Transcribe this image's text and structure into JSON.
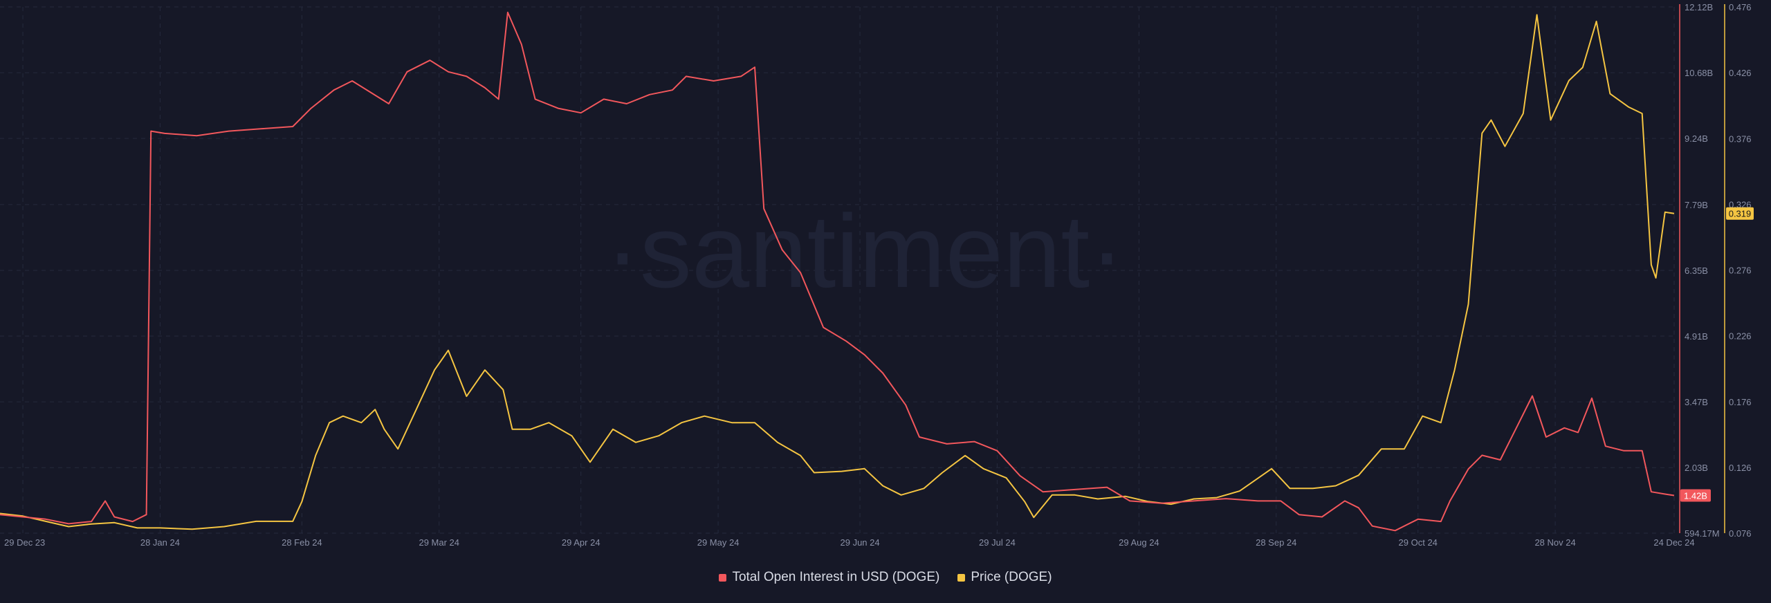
{
  "watermark": "·santiment·",
  "colors": {
    "background": "#161827",
    "grid": "#252a3d",
    "open_interest": "#f2575c",
    "price": "#f5c542",
    "axis_text": "#8a90a6"
  },
  "chart_data": {
    "type": "line",
    "title": "",
    "legend_position": "bottom-center",
    "grid": true,
    "x_range": [
      "2023-12-24",
      "2024-12-24"
    ],
    "x_ticks": [
      {
        "date": "2023-12-29",
        "label": "29 Dec 23"
      },
      {
        "date": "2024-01-28",
        "label": "28 Jan 24"
      },
      {
        "date": "2024-02-28",
        "label": "28 Feb 24"
      },
      {
        "date": "2024-03-29",
        "label": "29 Mar 24"
      },
      {
        "date": "2024-04-29",
        "label": "29 Apr 24"
      },
      {
        "date": "2024-05-29",
        "label": "29 May 24"
      },
      {
        "date": "2024-06-29",
        "label": "29 Jun 24"
      },
      {
        "date": "2024-07-29",
        "label": "29 Jul 24"
      },
      {
        "date": "2024-08-29",
        "label": "29 Aug 24"
      },
      {
        "date": "2024-09-28",
        "label": "28 Sep 24"
      },
      {
        "date": "2024-10-29",
        "label": "29 Oct 24"
      },
      {
        "date": "2024-11-28",
        "label": "28 Nov 24"
      },
      {
        "date": "2024-12-24",
        "label": "24 Dec 24"
      }
    ],
    "y_left": {
      "series": "Total Open Interest in USD (DOGE)",
      "range": [
        0.59417,
        12.12
      ],
      "unit": "B",
      "tick_labels": [
        "594.17M",
        "2.03B",
        "3.47B",
        "4.91B",
        "6.35B",
        "7.79B",
        "9.24B",
        "10.68B",
        "12.12B"
      ],
      "tick_values": [
        0.59417,
        2.03,
        3.47,
        4.91,
        6.35,
        7.79,
        9.24,
        10.68,
        12.12
      ]
    },
    "y_right": {
      "series": "Price (DOGE)",
      "range": [
        0.076,
        0.476
      ],
      "tick_labels": [
        "0.076",
        "0.126",
        "0.176",
        "0.226",
        "0.276",
        "0.326",
        "0.376",
        "0.426",
        "0.476"
      ],
      "tick_values": [
        0.076,
        0.126,
        0.176,
        0.226,
        0.276,
        0.326,
        0.376,
        0.426,
        0.476
      ]
    },
    "current_values": {
      "open_interest_label": "1.42B",
      "open_interest": 1.42,
      "price_label": "0.319",
      "price": 0.319
    },
    "series": [
      {
        "name": "Total Open Interest in USD (DOGE)",
        "axis": "left",
        "unit": "B USD",
        "points": [
          [
            "2023-12-24",
            1.0
          ],
          [
            "2023-12-29",
            0.95
          ],
          [
            "2024-01-03",
            0.9
          ],
          [
            "2024-01-08",
            0.8
          ],
          [
            "2024-01-13",
            0.85
          ],
          [
            "2024-01-16",
            1.3
          ],
          [
            "2024-01-18",
            0.95
          ],
          [
            "2024-01-22",
            0.85
          ],
          [
            "2024-01-25",
            1.0
          ],
          [
            "2024-01-26",
            9.4
          ],
          [
            "2024-01-29",
            9.35
          ],
          [
            "2024-02-05",
            9.3
          ],
          [
            "2024-02-12",
            9.4
          ],
          [
            "2024-02-19",
            9.45
          ],
          [
            "2024-02-26",
            9.5
          ],
          [
            "2024-03-01",
            9.9
          ],
          [
            "2024-03-06",
            10.3
          ],
          [
            "2024-03-10",
            10.5
          ],
          [
            "2024-03-14",
            10.25
          ],
          [
            "2024-03-18",
            10.0
          ],
          [
            "2024-03-22",
            10.7
          ],
          [
            "2024-03-27",
            10.95
          ],
          [
            "2024-03-31",
            10.7
          ],
          [
            "2024-04-04",
            10.6
          ],
          [
            "2024-04-08",
            10.35
          ],
          [
            "2024-04-11",
            10.1
          ],
          [
            "2024-04-13",
            12.0
          ],
          [
            "2024-04-16",
            11.3
          ],
          [
            "2024-04-19",
            10.1
          ],
          [
            "2024-04-24",
            9.9
          ],
          [
            "2024-04-29",
            9.8
          ],
          [
            "2024-05-04",
            10.1
          ],
          [
            "2024-05-09",
            10.0
          ],
          [
            "2024-05-14",
            10.2
          ],
          [
            "2024-05-19",
            10.3
          ],
          [
            "2024-05-22",
            10.6
          ],
          [
            "2024-05-28",
            10.5
          ],
          [
            "2024-06-03",
            10.6
          ],
          [
            "2024-06-06",
            10.8
          ],
          [
            "2024-06-08",
            7.7
          ],
          [
            "2024-06-12",
            6.8
          ],
          [
            "2024-06-16",
            6.3
          ],
          [
            "2024-06-21",
            5.1
          ],
          [
            "2024-06-26",
            4.8
          ],
          [
            "2024-06-30",
            4.5
          ],
          [
            "2024-07-04",
            4.1
          ],
          [
            "2024-07-09",
            3.4
          ],
          [
            "2024-07-12",
            2.7
          ],
          [
            "2024-07-18",
            2.55
          ],
          [
            "2024-07-24",
            2.6
          ],
          [
            "2024-07-29",
            2.4
          ],
          [
            "2024-08-03",
            1.85
          ],
          [
            "2024-08-08",
            1.5
          ],
          [
            "2024-08-15",
            1.55
          ],
          [
            "2024-08-22",
            1.6
          ],
          [
            "2024-08-27",
            1.3
          ],
          [
            "2024-09-03",
            1.25
          ],
          [
            "2024-09-10",
            1.3
          ],
          [
            "2024-09-17",
            1.35
          ],
          [
            "2024-09-24",
            1.3
          ],
          [
            "2024-09-29",
            1.3
          ],
          [
            "2024-10-03",
            1.0
          ],
          [
            "2024-10-08",
            0.95
          ],
          [
            "2024-10-13",
            1.3
          ],
          [
            "2024-10-16",
            1.15
          ],
          [
            "2024-10-19",
            0.75
          ],
          [
            "2024-10-24",
            0.65
          ],
          [
            "2024-10-29",
            0.9
          ],
          [
            "2024-11-03",
            0.85
          ],
          [
            "2024-11-05",
            1.3
          ],
          [
            "2024-11-09",
            2.0
          ],
          [
            "2024-11-12",
            2.3
          ],
          [
            "2024-11-16",
            2.2
          ],
          [
            "2024-11-20",
            3.0
          ],
          [
            "2024-11-23",
            3.6
          ],
          [
            "2024-11-26",
            2.7
          ],
          [
            "2024-11-30",
            2.9
          ],
          [
            "2024-12-03",
            2.8
          ],
          [
            "2024-12-06",
            3.55
          ],
          [
            "2024-12-09",
            2.5
          ],
          [
            "2024-12-13",
            2.4
          ],
          [
            "2024-12-17",
            2.4
          ],
          [
            "2024-12-19",
            1.5
          ],
          [
            "2024-12-22",
            1.45
          ],
          [
            "2024-12-24",
            1.42
          ]
        ]
      },
      {
        "name": "Price (DOGE)",
        "axis": "right",
        "unit": "USD",
        "points": [
          [
            "2023-12-24",
            0.091
          ],
          [
            "2023-12-29",
            0.089
          ],
          [
            "2024-01-03",
            0.085
          ],
          [
            "2024-01-08",
            0.081
          ],
          [
            "2024-01-13",
            0.083
          ],
          [
            "2024-01-18",
            0.084
          ],
          [
            "2024-01-23",
            0.08
          ],
          [
            "2024-01-28",
            0.08
          ],
          [
            "2024-02-04",
            0.079
          ],
          [
            "2024-02-11",
            0.081
          ],
          [
            "2024-02-18",
            0.085
          ],
          [
            "2024-02-26",
            0.085
          ],
          [
            "2024-02-28",
            0.1
          ],
          [
            "2024-03-02",
            0.135
          ],
          [
            "2024-03-05",
            0.16
          ],
          [
            "2024-03-08",
            0.165
          ],
          [
            "2024-03-12",
            0.16
          ],
          [
            "2024-03-15",
            0.17
          ],
          [
            "2024-03-17",
            0.155
          ],
          [
            "2024-03-20",
            0.14
          ],
          [
            "2024-03-24",
            0.17
          ],
          [
            "2024-03-28",
            0.2
          ],
          [
            "2024-03-31",
            0.215
          ],
          [
            "2024-04-04",
            0.18
          ],
          [
            "2024-04-08",
            0.2
          ],
          [
            "2024-04-12",
            0.185
          ],
          [
            "2024-04-14",
            0.155
          ],
          [
            "2024-04-18",
            0.155
          ],
          [
            "2024-04-22",
            0.16
          ],
          [
            "2024-04-27",
            0.15
          ],
          [
            "2024-05-01",
            0.13
          ],
          [
            "2024-05-06",
            0.155
          ],
          [
            "2024-05-11",
            0.145
          ],
          [
            "2024-05-16",
            0.15
          ],
          [
            "2024-05-21",
            0.16
          ],
          [
            "2024-05-26",
            0.165
          ],
          [
            "2024-06-01",
            0.16
          ],
          [
            "2024-06-06",
            0.16
          ],
          [
            "2024-06-11",
            0.145
          ],
          [
            "2024-06-16",
            0.135
          ],
          [
            "2024-06-19",
            0.122
          ],
          [
            "2024-06-25",
            0.123
          ],
          [
            "2024-06-30",
            0.125
          ],
          [
            "2024-07-04",
            0.112
          ],
          [
            "2024-07-08",
            0.105
          ],
          [
            "2024-07-13",
            0.11
          ],
          [
            "2024-07-17",
            0.122
          ],
          [
            "2024-07-22",
            0.135
          ],
          [
            "2024-07-26",
            0.125
          ],
          [
            "2024-07-31",
            0.118
          ],
          [
            "2024-08-04",
            0.1
          ],
          [
            "2024-08-06",
            0.088
          ],
          [
            "2024-08-10",
            0.105
          ],
          [
            "2024-08-15",
            0.105
          ],
          [
            "2024-08-20",
            0.102
          ],
          [
            "2024-08-26",
            0.104
          ],
          [
            "2024-08-31",
            0.1
          ],
          [
            "2024-09-05",
            0.098
          ],
          [
            "2024-09-10",
            0.102
          ],
          [
            "2024-09-15",
            0.103
          ],
          [
            "2024-09-20",
            0.108
          ],
          [
            "2024-09-27",
            0.125
          ],
          [
            "2024-10-01",
            0.11
          ],
          [
            "2024-10-06",
            0.11
          ],
          [
            "2024-10-11",
            0.112
          ],
          [
            "2024-10-16",
            0.12
          ],
          [
            "2024-10-21",
            0.14
          ],
          [
            "2024-10-26",
            0.14
          ],
          [
            "2024-10-30",
            0.165
          ],
          [
            "2024-11-03",
            0.16
          ],
          [
            "2024-11-06",
            0.2
          ],
          [
            "2024-11-09",
            0.25
          ],
          [
            "2024-11-12",
            0.38
          ],
          [
            "2024-11-14",
            0.39
          ],
          [
            "2024-11-17",
            0.37
          ],
          [
            "2024-11-21",
            0.395
          ],
          [
            "2024-11-24",
            0.47
          ],
          [
            "2024-11-27",
            0.39
          ],
          [
            "2024-12-01",
            0.42
          ],
          [
            "2024-12-04",
            0.43
          ],
          [
            "2024-12-07",
            0.465
          ],
          [
            "2024-12-10",
            0.41
          ],
          [
            "2024-12-14",
            0.4
          ],
          [
            "2024-12-17",
            0.395
          ],
          [
            "2024-12-19",
            0.28
          ],
          [
            "2024-12-20",
            0.27
          ],
          [
            "2024-12-22",
            0.32
          ],
          [
            "2024-12-24",
            0.319
          ]
        ]
      }
    ]
  },
  "legend": {
    "items": [
      {
        "label": "Total Open Interest in USD (DOGE)",
        "color": "#f2575c"
      },
      {
        "label": "Price (DOGE)",
        "color": "#f5c542"
      }
    ]
  }
}
